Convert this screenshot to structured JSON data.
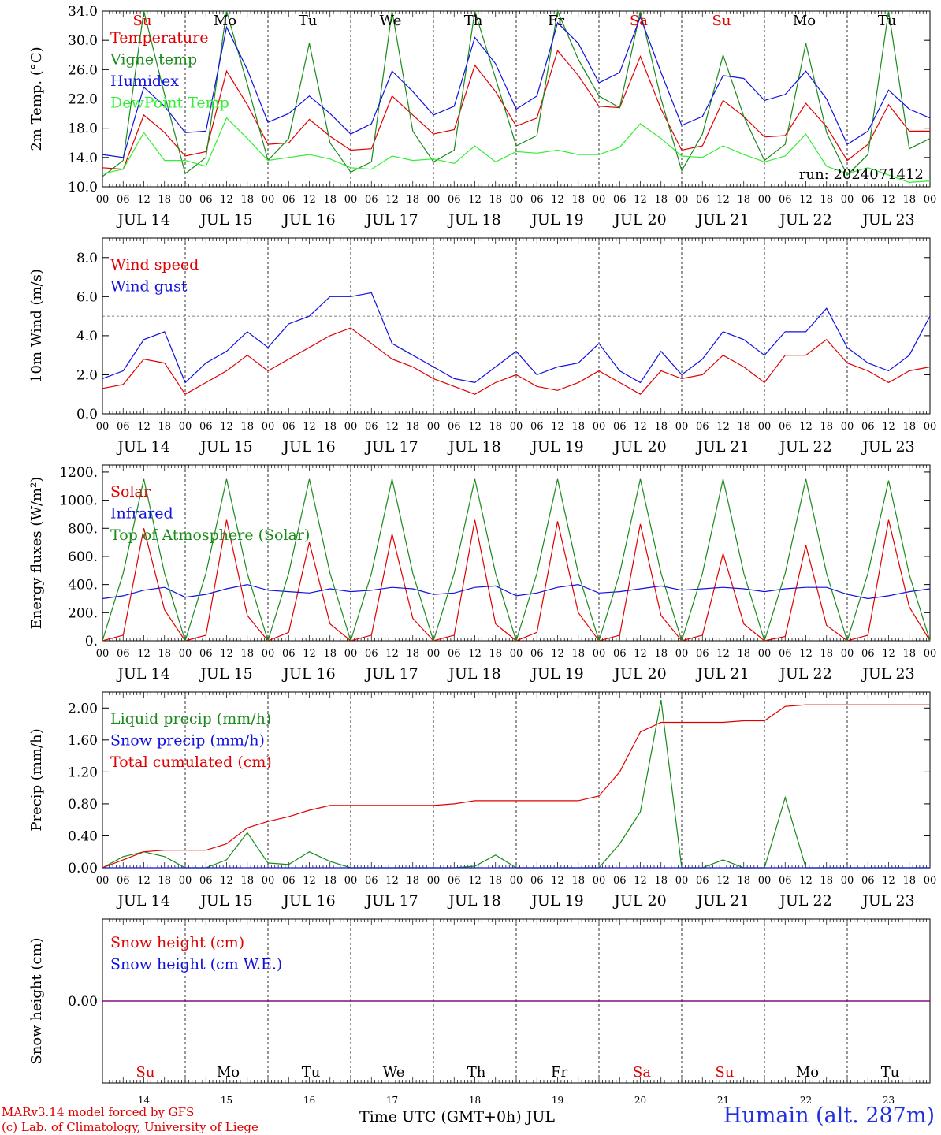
{
  "colors": {
    "red": "#e00000",
    "green": "#1a8a1a",
    "lightgreen": "#33ee33",
    "blue": "#1010e0",
    "purple": "#800080",
    "grey": "#666666"
  },
  "days": [
    "JUL 14",
    "JUL 15",
    "JUL 16",
    "JUL 17",
    "JUL 18",
    "JUL 19",
    "JUL 20",
    "JUL 21",
    "JUL 22",
    "JUL 23"
  ],
  "day_numbers": [
    "14",
    "15",
    "16",
    "17",
    "18",
    "19",
    "20",
    "21",
    "22",
    "23"
  ],
  "weekdays": [
    {
      "label": "Su",
      "weekend": true
    },
    {
      "label": "Mo",
      "weekend": false
    },
    {
      "label": "Tu",
      "weekend": false
    },
    {
      "label": "We",
      "weekend": false
    },
    {
      "label": "Th",
      "weekend": false
    },
    {
      "label": "Fr",
      "weekend": false
    },
    {
      "label": "Sa",
      "weekend": true
    },
    {
      "label": "Su",
      "weekend": true
    },
    {
      "label": "Mo",
      "weekend": false
    },
    {
      "label": "Tu",
      "weekend": false
    }
  ],
  "hour_ticks": [
    "00",
    "06",
    "12",
    "18"
  ],
  "footer": {
    "credit_line1": "MARv3.14 model forced by GFS",
    "credit_line2": "(c) Lab. of Climatology, University of Liege",
    "x_title": "Time UTC (GMT+0h) JUL",
    "station": "Humain (alt. 287m)"
  },
  "chart_data": [
    {
      "type": "line",
      "ylabel": "2m Temp. (°C)",
      "ylim": [
        10.0,
        34.0
      ],
      "yticks": [
        "10.0",
        "14.0",
        "18.0",
        "22.0",
        "26.0",
        "30.0",
        "34.0"
      ],
      "annotation": "run: 2024071412",
      "x_start_day": 14,
      "x_step_hours": 6,
      "series": [
        {
          "name": "Temperature",
          "color": "red",
          "values": [
            12.6,
            12.4,
            19.8,
            17.4,
            14.2,
            14.8,
            25.8,
            21.2,
            15.8,
            16.0,
            19.2,
            16.9,
            15.0,
            15.2,
            22.4,
            19.8,
            17.2,
            17.8,
            26.6,
            23.0,
            18.3,
            19.4,
            28.6,
            25.2,
            21.0,
            20.8,
            27.8,
            20.6,
            15.0,
            15.6,
            21.8,
            19.6,
            16.8,
            17.0,
            21.4,
            18.2,
            13.6,
            15.8,
            21.2,
            17.6,
            17.6
          ]
        },
        {
          "name": "Vigne temp",
          "color": "green",
          "values": [
            11.4,
            13.6,
            34.0,
            22.6,
            11.8,
            14.0,
            34.0,
            24.0,
            13.6,
            16.6,
            29.6,
            16.0,
            12.0,
            13.4,
            34.0,
            17.6,
            13.4,
            15.0,
            34.0,
            24.8,
            15.6,
            17.0,
            34.0,
            27.4,
            22.4,
            20.8,
            34.0,
            22.0,
            12.2,
            17.2,
            28.0,
            19.6,
            13.6,
            15.8,
            29.6,
            17.4,
            11.6,
            14.4,
            34.0,
            15.2,
            16.6
          ]
        },
        {
          "name": "Humidex",
          "color": "blue",
          "values": [
            14.4,
            14.0,
            23.6,
            21.0,
            17.4,
            17.6,
            31.8,
            26.0,
            18.8,
            20.0,
            22.4,
            20.0,
            17.2,
            18.6,
            25.8,
            23.0,
            19.8,
            21.0,
            30.4,
            26.8,
            20.6,
            22.4,
            32.4,
            29.6,
            24.2,
            25.6,
            33.2,
            25.6,
            18.4,
            19.6,
            25.2,
            24.8,
            21.8,
            22.6,
            25.8,
            22.0,
            15.8,
            17.6,
            23.2,
            20.6,
            19.4
          ]
        },
        {
          "name": "DewPoint Temp",
          "color": "lightgreen",
          "values": [
            11.8,
            12.4,
            17.4,
            13.6,
            13.6,
            12.8,
            19.4,
            16.6,
            13.6,
            14.0,
            14.4,
            13.8,
            12.6,
            12.4,
            14.2,
            13.6,
            13.8,
            13.2,
            15.6,
            13.4,
            14.8,
            14.6,
            15.0,
            14.4,
            14.4,
            15.4,
            18.6,
            16.6,
            14.2,
            14.0,
            15.6,
            14.4,
            13.4,
            14.2,
            17.2,
            12.8,
            11.8,
            12.6,
            11.6,
            10.6,
            10.8
          ]
        }
      ]
    },
    {
      "type": "line",
      "ylabel": "10m Wind (m/s)",
      "ylim": [
        0.0,
        9.0
      ],
      "yticks": [
        "0.0",
        "2.0",
        "4.0",
        "6.0",
        "8.0"
      ],
      "reference_line": 5.0,
      "x_start_day": 14,
      "x_step_hours": 6,
      "series": [
        {
          "name": "Wind speed",
          "color": "red",
          "values": [
            1.3,
            1.5,
            2.8,
            2.6,
            1.0,
            1.6,
            2.2,
            3.0,
            2.2,
            2.8,
            3.4,
            4.0,
            4.4,
            3.6,
            2.8,
            2.4,
            1.8,
            1.4,
            1.0,
            1.6,
            2.0,
            1.4,
            1.2,
            1.6,
            2.2,
            1.6,
            1.0,
            2.2,
            1.8,
            2.0,
            3.0,
            2.4,
            1.6,
            3.0,
            3.0,
            3.8,
            2.6,
            2.2,
            1.6,
            2.2,
            2.4
          ]
        },
        {
          "name": "Wind gust",
          "color": "blue",
          "values": [
            1.8,
            2.2,
            3.8,
            4.2,
            1.6,
            2.6,
            3.2,
            4.2,
            3.4,
            4.6,
            5.0,
            6.0,
            6.0,
            6.2,
            3.6,
            3.0,
            2.4,
            1.8,
            1.6,
            2.4,
            3.2,
            2.0,
            2.4,
            2.6,
            3.6,
            2.2,
            1.6,
            3.2,
            2.0,
            2.8,
            4.2,
            3.8,
            3.0,
            4.2,
            4.2,
            5.4,
            3.4,
            2.6,
            2.2,
            3.0,
            5.0
          ]
        }
      ]
    },
    {
      "type": "line",
      "ylabel": "Energy fluxes (W/m²)",
      "ylim": [
        0,
        1250
      ],
      "yticks": [
        "0.",
        "200.",
        "400.",
        "600.",
        "800.",
        "1000.",
        "1200."
      ],
      "x_start_day": 14,
      "x_step_hours": 6,
      "series": [
        {
          "name": "Solar",
          "color": "red",
          "values": [
            0,
            40,
            800,
            220,
            0,
            40,
            860,
            180,
            0,
            60,
            700,
            120,
            0,
            40,
            760,
            160,
            0,
            40,
            860,
            120,
            0,
            60,
            850,
            200,
            0,
            40,
            830,
            180,
            0,
            40,
            620,
            120,
            0,
            30,
            680,
            110,
            0,
            40,
            860,
            240,
            0
          ]
        },
        {
          "name": "Infrared",
          "color": "blue",
          "values": [
            300,
            320,
            360,
            380,
            310,
            330,
            370,
            400,
            360,
            350,
            340,
            370,
            350,
            360,
            380,
            370,
            330,
            340,
            380,
            390,
            320,
            340,
            380,
            400,
            340,
            350,
            370,
            390,
            360,
            370,
            380,
            370,
            350,
            370,
            380,
            380,
            330,
            300,
            320,
            350,
            370
          ]
        },
        {
          "name": "Top of Atmosphere (Solar)",
          "color": "green",
          "values": [
            0,
            480,
            1150,
            480,
            0,
            480,
            1150,
            480,
            0,
            480,
            1150,
            480,
            0,
            480,
            1150,
            480,
            0,
            480,
            1150,
            480,
            0,
            480,
            1150,
            480,
            0,
            480,
            1150,
            480,
            0,
            480,
            1150,
            480,
            0,
            480,
            1150,
            480,
            0,
            480,
            1140,
            470,
            0
          ]
        }
      ]
    },
    {
      "type": "line",
      "ylabel": "Precip (mm/h)",
      "ylim": [
        0.0,
        2.2
      ],
      "yticks": [
        "0.00",
        "0.40",
        "0.80",
        "1.20",
        "1.60",
        "2.00"
      ],
      "x_start_day": 14,
      "x_step_hours": 6,
      "series": [
        {
          "name": "Liquid precip (mm/h)",
          "color": "green",
          "values": [
            0.0,
            0.14,
            0.2,
            0.14,
            0.0,
            0.0,
            0.1,
            0.44,
            0.06,
            0.04,
            0.2,
            0.08,
            0.0,
            0.0,
            0.0,
            0.0,
            0.0,
            0.0,
            0.02,
            0.16,
            0.0,
            0.0,
            0.0,
            0.0,
            0.0,
            0.3,
            0.7,
            2.1,
            0.0,
            0.0,
            0.1,
            0.0,
            0.0,
            0.88,
            0.0,
            0.0,
            0.0,
            0.0,
            0.0,
            0.0,
            0.0
          ]
        },
        {
          "name": "Snow precip (mm/h)",
          "color": "blue",
          "values": [
            0,
            0,
            0,
            0,
            0,
            0,
            0,
            0,
            0,
            0,
            0,
            0,
            0,
            0,
            0,
            0,
            0,
            0,
            0,
            0,
            0,
            0,
            0,
            0,
            0,
            0,
            0,
            0,
            0,
            0,
            0,
            0,
            0,
            0,
            0,
            0,
            0,
            0,
            0,
            0,
            0
          ]
        },
        {
          "name": "Total cumulated (cm)",
          "color": "red",
          "values": [
            0.0,
            0.1,
            0.2,
            0.22,
            0.22,
            0.22,
            0.3,
            0.5,
            0.58,
            0.64,
            0.72,
            0.78,
            0.78,
            0.78,
            0.78,
            0.78,
            0.78,
            0.8,
            0.84,
            0.84,
            0.84,
            0.84,
            0.84,
            0.84,
            0.9,
            1.2,
            1.7,
            1.82,
            1.82,
            1.82,
            1.82,
            1.84,
            1.84,
            2.02,
            2.04,
            2.04,
            2.04,
            2.04,
            2.04,
            2.04,
            2.04
          ]
        }
      ]
    },
    {
      "type": "line",
      "ylabel": "Snow height (cm)",
      "ylim": [
        -1.0,
        1.0
      ],
      "yticks": [
        "0.00"
      ],
      "x_start_day": 14,
      "x_step_hours": 6,
      "series": [
        {
          "name": "Snow height (cm)",
          "color": "red",
          "values": [
            0,
            0,
            0,
            0,
            0,
            0,
            0,
            0,
            0,
            0,
            0,
            0,
            0,
            0,
            0,
            0,
            0,
            0,
            0,
            0,
            0,
            0,
            0,
            0,
            0,
            0,
            0,
            0,
            0,
            0,
            0,
            0,
            0,
            0,
            0,
            0,
            0,
            0,
            0,
            0,
            0
          ]
        },
        {
          "name": "Snow height (cm W.E.)",
          "color": "blue",
          "values": [
            0,
            0,
            0,
            0,
            0,
            0,
            0,
            0,
            0,
            0,
            0,
            0,
            0,
            0,
            0,
            0,
            0,
            0,
            0,
            0,
            0,
            0,
            0,
            0,
            0,
            0,
            0,
            0,
            0,
            0,
            0,
            0,
            0,
            0,
            0,
            0,
            0,
            0,
            0,
            0,
            0
          ]
        }
      ]
    }
  ]
}
